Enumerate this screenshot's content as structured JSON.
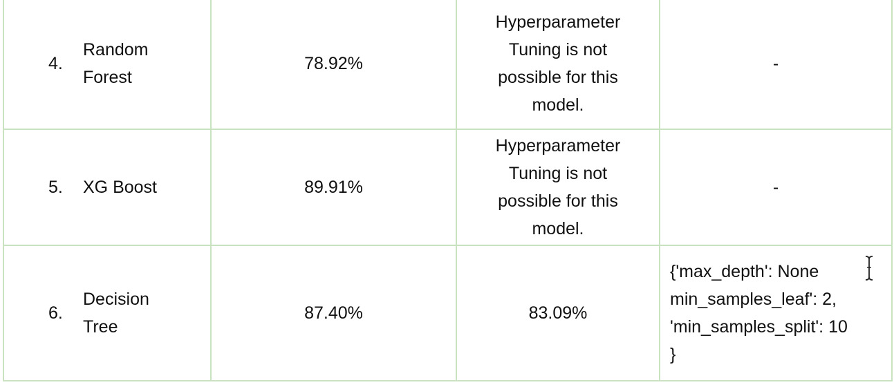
{
  "rows": [
    {
      "number": "4.",
      "model": [
        "Random",
        "Forest"
      ],
      "accuracy": "78.92%",
      "tuned": [
        "Hyperparameter",
        "Tuning is not",
        "possible for this",
        "model."
      ],
      "params": [
        "-"
      ]
    },
    {
      "number": "5.",
      "model": [
        "XG Boost"
      ],
      "accuracy": "89.91%",
      "tuned": [
        "Hyperparameter",
        "Tuning is not",
        "possible for this",
        "model."
      ],
      "params": [
        "-"
      ]
    },
    {
      "number": "6.",
      "model": [
        "Decision",
        "Tree"
      ],
      "accuracy": "87.40%",
      "tuned": [
        "83.09%"
      ],
      "params": [
        "{'max_depth': None",
        "min_samples_leaf': 2,",
        "'min_samples_split': 10",
        "}"
      ]
    }
  ],
  "icons": {
    "text_cursor": "text-cursor-icon"
  },
  "colors": {
    "border": "#c9e2c0",
    "text": "#111111"
  }
}
